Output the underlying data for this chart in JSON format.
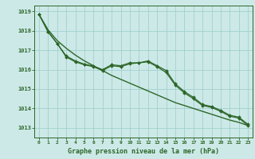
{
  "xlabel": "Graphe pression niveau de la mer (hPa)",
  "ylim": [
    1012.5,
    1019.3
  ],
  "xlim": [
    -0.5,
    23.5
  ],
  "yticks": [
    1013,
    1014,
    1015,
    1016,
    1017,
    1018,
    1019
  ],
  "xticks": [
    0,
    1,
    2,
    3,
    4,
    5,
    6,
    7,
    8,
    9,
    10,
    11,
    12,
    13,
    14,
    15,
    16,
    17,
    18,
    19,
    20,
    21,
    22,
    23
  ],
  "bg_color": "#cce9e7",
  "grid_color": "#a0d0ce",
  "line_color": "#2d6628",
  "bottom_bar_color": "#336633",
  "line_smooth": [
    1018.85,
    1018.05,
    1017.5,
    1017.1,
    1016.75,
    1016.45,
    1016.2,
    1015.95,
    1015.7,
    1015.5,
    1015.3,
    1015.1,
    1014.9,
    1014.7,
    1014.5,
    1014.3,
    1014.15,
    1014.0,
    1013.85,
    1013.7,
    1013.55,
    1013.4,
    1013.28,
    1013.12
  ],
  "line_a": [
    1018.85,
    1017.95,
    1017.35,
    1016.65,
    1016.4,
    1016.25,
    1016.15,
    1015.95,
    1016.2,
    1016.15,
    1016.3,
    1016.35,
    1016.4,
    1016.15,
    1015.85,
    1015.2,
    1014.8,
    1014.5,
    1014.15,
    1014.05,
    1013.85,
    1013.6,
    1013.5,
    1013.12
  ],
  "line_b": [
    1018.85,
    1017.95,
    1017.35,
    1016.7,
    1016.45,
    1016.28,
    1016.18,
    1016.0,
    1016.25,
    1016.2,
    1016.35,
    1016.35,
    1016.45,
    1016.2,
    1015.95,
    1015.27,
    1014.87,
    1014.57,
    1014.2,
    1014.1,
    1013.9,
    1013.65,
    1013.55,
    1013.18
  ]
}
